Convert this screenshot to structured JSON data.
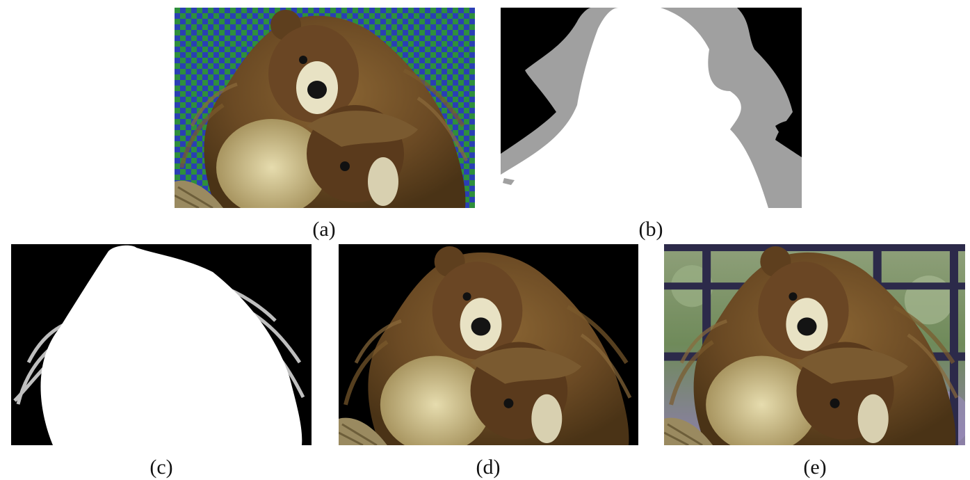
{
  "figure": {
    "panels": [
      {
        "id": "a",
        "caption": "(a)",
        "content": "input-image-checkerboard-background"
      },
      {
        "id": "b",
        "caption": "(b)",
        "content": "trimap"
      },
      {
        "id": "c",
        "caption": "(c)",
        "content": "alpha-matte"
      },
      {
        "id": "d",
        "caption": "(d)",
        "content": "foreground-on-black"
      },
      {
        "id": "e",
        "caption": "(e)",
        "content": "composite-on-window-background"
      }
    ],
    "colors": {
      "checker_green": "#2e8f3c",
      "checker_blue": "#2a3fb4",
      "fur_brown": "#6b4a24",
      "fur_light": "#cdbf8a",
      "trimap_unknown": "#a0a0a0",
      "window_frame": "#2c2a4a"
    }
  }
}
